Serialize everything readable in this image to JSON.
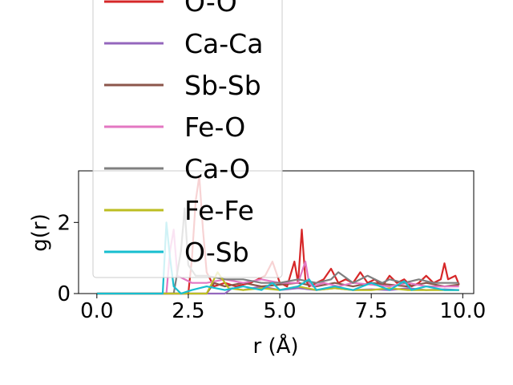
{
  "chart_data": {
    "type": "line",
    "xlabel": "r (Å)",
    "ylabel": "g(r)",
    "xlim": [
      -0.5,
      10.3
    ],
    "ylim": [
      0,
      3.45
    ],
    "xticks": [
      0.0,
      2.5,
      5.0,
      7.5,
      10.0
    ],
    "xtick_labels": [
      "0.0",
      "2.5",
      "5.0",
      "7.5",
      "10.0"
    ],
    "yticks": [
      0,
      2
    ],
    "ytick_labels": [
      "0",
      "2"
    ],
    "legend_position": "upper-left",
    "series": [
      {
        "name": "O-O",
        "color": "#d62728",
        "x": [
          0,
          2.5,
          2.6,
          2.7,
          2.8,
          2.9,
          3.0,
          3.2,
          3.5,
          3.8,
          4.2,
          4.6,
          4.8,
          5.0,
          5.2,
          5.4,
          5.5,
          5.6,
          5.7,
          5.8,
          6.0,
          6.2,
          6.4,
          6.6,
          6.8,
          7.0,
          7.2,
          7.4,
          7.6,
          7.8,
          8.0,
          8.2,
          8.4,
          8.6,
          8.8,
          9.0,
          9.2,
          9.4,
          9.5,
          9.6,
          9.8,
          9.9
        ],
        "y": [
          0,
          0,
          1.0,
          2.6,
          3.3,
          1.8,
          0.6,
          0.2,
          0.3,
          0.2,
          0.3,
          0.5,
          0.9,
          0.3,
          0.2,
          0.9,
          0.3,
          1.8,
          0.4,
          0.2,
          0.3,
          0.4,
          0.7,
          0.3,
          0.4,
          0.3,
          0.6,
          0.3,
          0.4,
          0.2,
          0.5,
          0.3,
          0.4,
          0.2,
          0.3,
          0.5,
          0.3,
          0.4,
          0.85,
          0.4,
          0.5,
          0.25
        ]
      },
      {
        "name": "Ca-Ca",
        "color": "#9467bd",
        "x": [
          0,
          3.5,
          3.7,
          4.0,
          4.5,
          5.0,
          5.5,
          6.0,
          6.5,
          7.0,
          7.5,
          8.0,
          8.5,
          9.0,
          9.5,
          9.9
        ],
        "y": [
          0,
          0,
          0.15,
          0.1,
          0.2,
          0.1,
          0.15,
          0.1,
          0.15,
          0.1,
          0.12,
          0.1,
          0.15,
          0.1,
          0.12,
          0.1
        ]
      },
      {
        "name": "Sb-Sb",
        "color": "#8c564b",
        "x": [
          0,
          3.0,
          3.2,
          3.5,
          4.0,
          4.5,
          5.0,
          5.5,
          6.0,
          6.5,
          7.0,
          7.5,
          8.0,
          8.5,
          9.0,
          9.5,
          9.9
        ],
        "y": [
          0,
          0,
          0.3,
          0.2,
          0.3,
          0.2,
          0.25,
          0.3,
          0.2,
          0.3,
          0.2,
          0.3,
          0.25,
          0.2,
          0.3,
          0.2,
          0.25
        ]
      },
      {
        "name": "Fe-O",
        "color": "#e377c2",
        "x": [
          0,
          1.9,
          2.0,
          2.1,
          2.2,
          2.6,
          3.0,
          3.5,
          4.0,
          4.5,
          5.0,
          5.5,
          5.7,
          5.8,
          5.9,
          6.2,
          6.6,
          7.0,
          7.5,
          8.0,
          8.5,
          9.0,
          9.5,
          9.9
        ],
        "y": [
          0,
          0,
          1.2,
          1.8,
          0.5,
          0.3,
          0.3,
          0.4,
          0.3,
          0.4,
          0.3,
          0.3,
          0.9,
          0.3,
          0.2,
          0.3,
          0.2,
          0.3,
          0.25,
          0.2,
          0.3,
          0.2,
          0.2,
          0.2
        ]
      },
      {
        "name": "Ca-O",
        "color": "#7f7f7f",
        "x": [
          0,
          2.1,
          2.3,
          2.4,
          2.5,
          2.7,
          3.0,
          3.5,
          4.0,
          4.5,
          5.0,
          5.5,
          6.0,
          6.4,
          6.6,
          7.0,
          7.4,
          7.8,
          8.0,
          8.4,
          8.8,
          9.2,
          9.6,
          9.9
        ],
        "y": [
          0,
          0,
          1.2,
          2.4,
          0.8,
          0.5,
          0.5,
          0.4,
          0.4,
          0.3,
          0.3,
          0.4,
          0.3,
          0.4,
          0.6,
          0.3,
          0.5,
          0.3,
          0.4,
          0.3,
          0.4,
          0.3,
          0.3,
          0.3
        ]
      },
      {
        "name": "Fe-Fe",
        "color": "#bcbd22",
        "x": [
          0,
          3.0,
          3.3,
          3.6,
          4.0,
          4.5,
          5.0,
          5.5,
          6.0,
          6.5,
          7.0,
          7.5,
          8.0,
          8.5,
          9.0,
          9.5,
          9.9
        ],
        "y": [
          0,
          0,
          0.6,
          0.15,
          0.1,
          0.15,
          0.1,
          0.2,
          0.1,
          0.15,
          0.1,
          0.1,
          0.15,
          0.1,
          0.1,
          0.1,
          0.1
        ]
      },
      {
        "name": "O-Sb",
        "color": "#17becf",
        "x": [
          0,
          1.8,
          1.9,
          2.0,
          2.1,
          2.3,
          2.6,
          3.0,
          3.5,
          4.0,
          4.5,
          4.8,
          5.0,
          5.5,
          5.8,
          6.0,
          6.5,
          7.0,
          7.5,
          8.0,
          8.4,
          8.6,
          9.0,
          9.5,
          9.9
        ],
        "y": [
          0,
          0,
          2.0,
          1.0,
          0.2,
          0.0,
          0.1,
          0.2,
          0.1,
          0.2,
          0.1,
          0.3,
          0.1,
          0.2,
          0.4,
          0.1,
          0.2,
          0.1,
          0.3,
          0.1,
          0.35,
          0.1,
          0.2,
          0.1,
          0.1
        ]
      }
    ]
  }
}
